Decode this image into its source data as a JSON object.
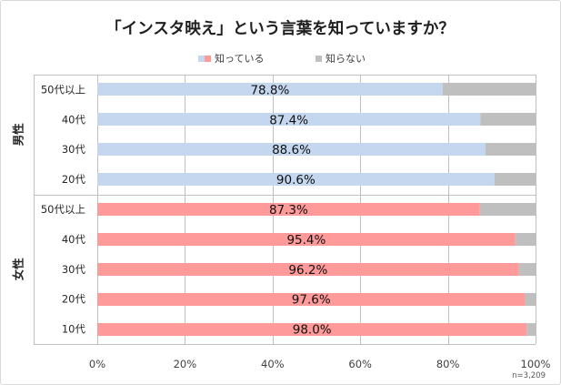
{
  "chart_data": {
    "type": "bar",
    "orientation": "horizontal",
    "stacked": true,
    "title": "「インスタ映え」という言葉を知っていますか？",
    "legend": {
      "position": "top",
      "entries": [
        "知っている",
        "知らない"
      ]
    },
    "colors": {
      "male": "#c5d7ef",
      "female": "#fe9a9a",
      "unknown": "#bfbfbf",
      "grid": "#bfbfbf",
      "legend_know_a": "#c5d7ef",
      "legend_know_b": "#fe9a9a",
      "legend_unknown": "#bfbfbf"
    },
    "groups": [
      {
        "name": "男性",
        "color_key": "male",
        "categories": [
          "50代以上",
          "40代",
          "30代",
          "20代"
        ],
        "values": [
          78.8,
          87.4,
          88.6,
          90.6
        ],
        "labels": [
          "78.8%",
          "87.4%",
          "88.6%",
          "90.6%"
        ]
      },
      {
        "name": "女性",
        "color_key": "female",
        "categories": [
          "50代以上",
          "40代",
          "30代",
          "20代",
          "10代"
        ],
        "values": [
          87.3,
          95.4,
          96.2,
          97.6,
          98.0
        ],
        "labels": [
          "87.3%",
          "95.4%",
          "96.2%",
          "97.6%",
          "98.0%"
        ]
      }
    ],
    "xlim": [
      0,
      100
    ],
    "xticks": [
      "0%",
      "20%",
      "40%",
      "60%",
      "80%",
      "100%"
    ],
    "grid": true,
    "note": "n=3,209"
  }
}
